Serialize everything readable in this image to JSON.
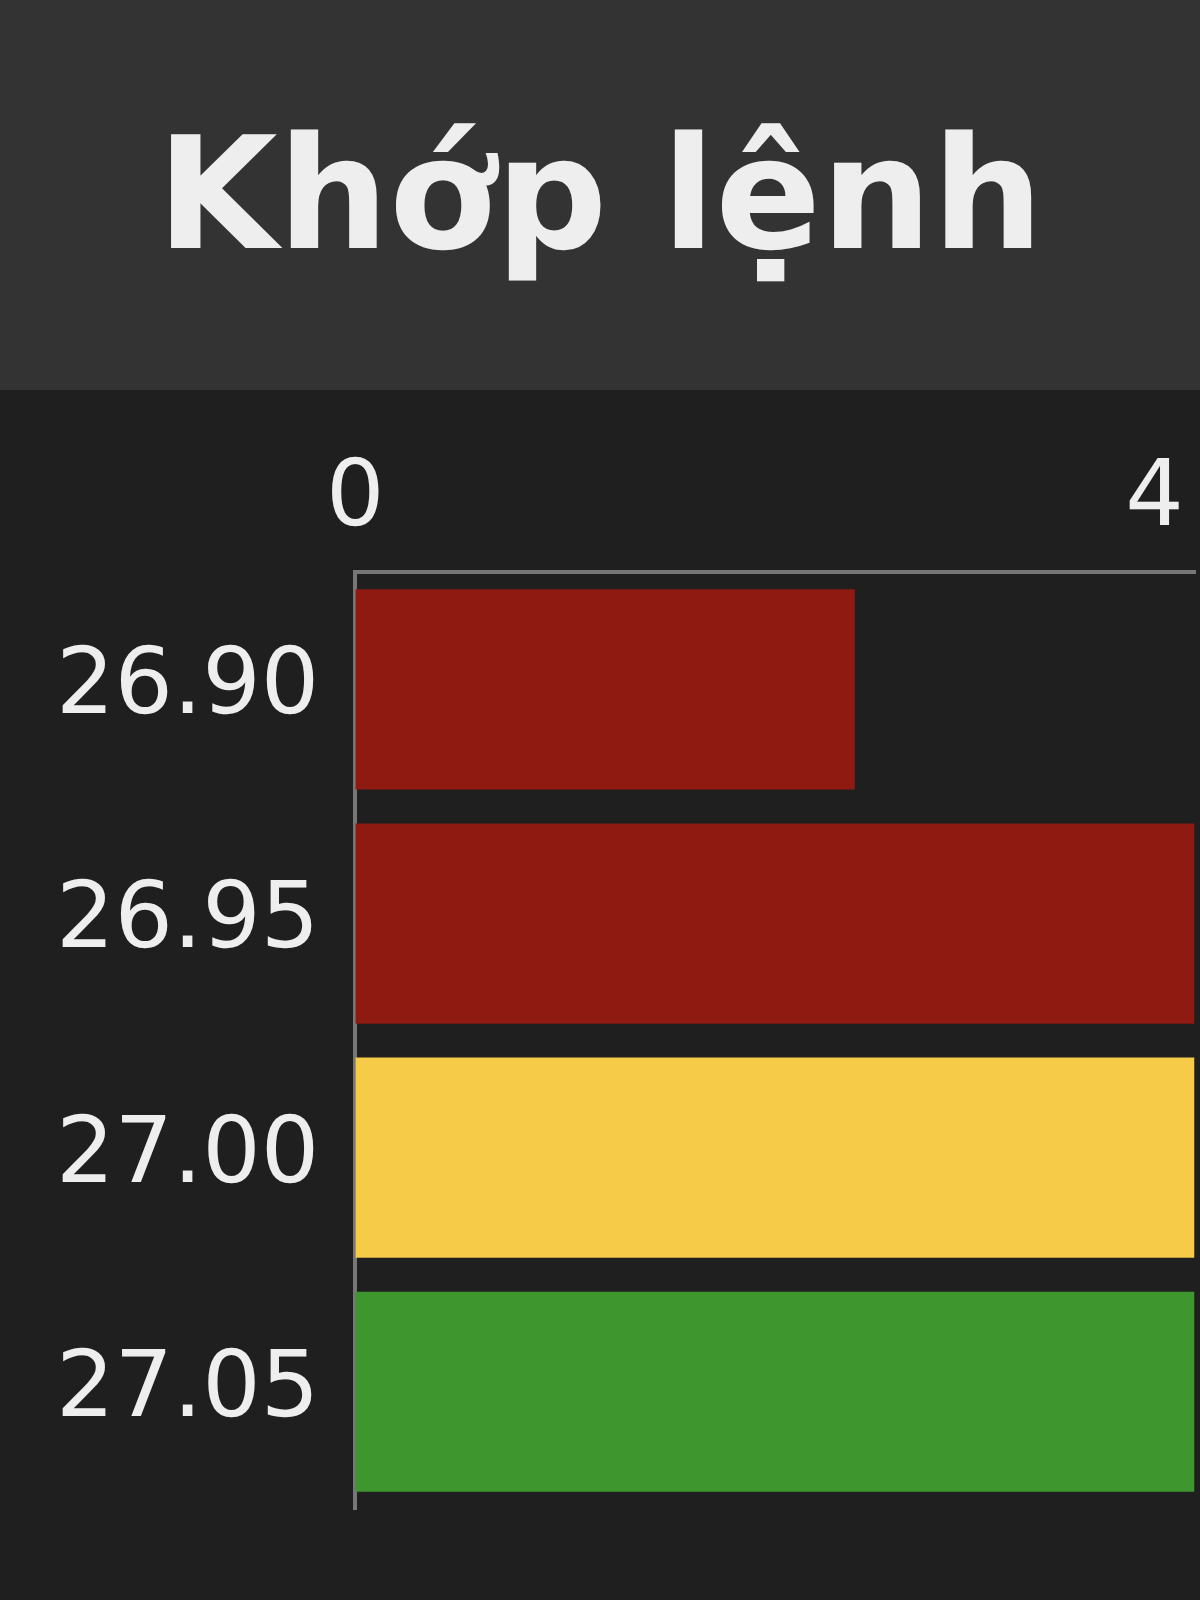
{
  "chart_data": {
    "type": "bar",
    "orientation": "horizontal",
    "title": "Khớp lệnh",
    "categories": [
      "26.90",
      "26.95",
      "27.00",
      "27.05"
    ],
    "values": [
      2.5,
      4.2,
      4.2,
      4.2
    ],
    "colors": [
      "#8e1a12",
      "#8e1a12",
      "#f5cb48",
      "#3e962e"
    ],
    "xlim": [
      0,
      4.2
    ],
    "xticks": [
      0,
      4
    ]
  }
}
